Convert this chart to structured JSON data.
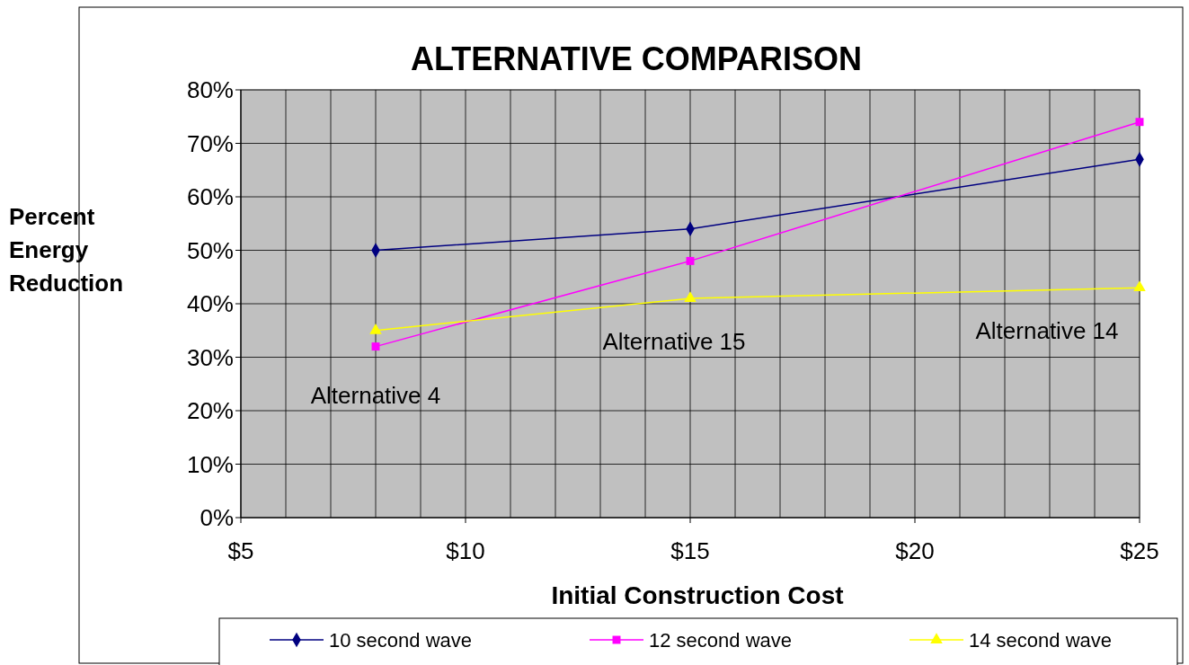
{
  "chart_data": {
    "type": "line",
    "title": "ALTERNATIVE COMPARISON",
    "xlabel": "Initial Construction Cost",
    "ylabel": "Percent Energy Reduction",
    "x": [
      8,
      15,
      25
    ],
    "series": [
      {
        "name": "10 second wave",
        "color": "#000080",
        "values": [
          50,
          54,
          67
        ],
        "marker": "diamond"
      },
      {
        "name": "12 second wave",
        "color": "#ff00ff",
        "values": [
          32,
          48,
          74
        ],
        "marker": "square"
      },
      {
        "name": "14 second wave",
        "color": "#ffff00",
        "values": [
          35,
          41,
          43
        ],
        "marker": "triangle"
      }
    ],
    "xlim": [
      5,
      25
    ],
    "xticks": [
      {
        "value": 5,
        "label": "$5"
      },
      {
        "value": 10,
        "label": "$10"
      },
      {
        "value": 15,
        "label": "$15"
      },
      {
        "value": 20,
        "label": "$20"
      },
      {
        "value": 25,
        "label": "$25"
      }
    ],
    "ylim": [
      0,
      80
    ],
    "yticks": [
      {
        "value": 0,
        "label": "0%"
      },
      {
        "value": 10,
        "label": "10%"
      },
      {
        "value": 20,
        "label": "20%"
      },
      {
        "value": 30,
        "label": "30%"
      },
      {
        "value": 40,
        "label": "40%"
      },
      {
        "value": 50,
        "label": "50%"
      },
      {
        "value": 60,
        "label": "60%"
      },
      {
        "value": 70,
        "label": "70%"
      },
      {
        "value": 80,
        "label": "80%"
      }
    ],
    "grid": true,
    "legend": "bottom",
    "line_style": "solid",
    "annotations": [
      "Alternative 4",
      "Alternative 15",
      "Alternative 14"
    ]
  }
}
